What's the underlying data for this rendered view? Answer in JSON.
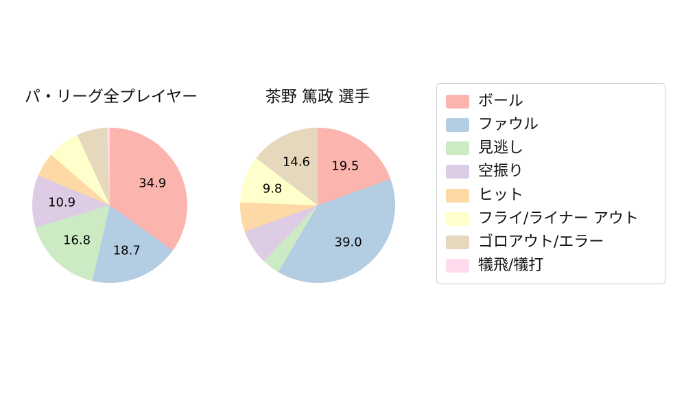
{
  "charts": {
    "left_title": "パ・リーグ全プレイヤー",
    "right_title": "茶野 篤政 選手"
  },
  "legend": {
    "items": [
      {
        "label": "ボール",
        "color": "#fbb4ae"
      },
      {
        "label": "ファウル",
        "color": "#b3cde3"
      },
      {
        "label": "見逃し",
        "color": "#ccebc5"
      },
      {
        "label": "空振り",
        "color": "#decbe4"
      },
      {
        "label": "ヒット",
        "color": "#fed9a6"
      },
      {
        "label": "フライ/ライナー アウト",
        "color": "#ffffcc"
      },
      {
        "label": "ゴロアウト/エラー",
        "color": "#e5d8bd"
      },
      {
        "label": "犠飛/犠打",
        "color": "#fddaec"
      }
    ]
  },
  "chart_data": [
    {
      "type": "pie",
      "title": "パ・リーグ全プレイヤー",
      "labels": [
        "ボール",
        "ファウル",
        "見逃し",
        "空振り",
        "ヒット",
        "フライ/ライナー アウト",
        "ゴロアウト/エラー",
        "犠飛/犠打"
      ],
      "values": [
        34.9,
        18.7,
        16.8,
        10.9,
        5.0,
        6.8,
        6.3,
        0.6
      ],
      "value_labels": [
        "34.9",
        "18.7",
        "16.8",
        "10.9",
        "",
        "",
        "",
        ""
      ],
      "colors": [
        "#fbb4ae",
        "#b3cde3",
        "#ccebc5",
        "#decbe4",
        "#fed9a6",
        "#ffffcc",
        "#e5d8bd",
        "#fddaec"
      ],
      "start_angle_deg": 90,
      "direction": "clockwise",
      "legend_position": "right"
    },
    {
      "type": "pie",
      "title": "茶野 篤政 選手",
      "labels": [
        "ボール",
        "ファウル",
        "見逃し",
        "空振り",
        "ヒット",
        "フライ/ライナー アウト",
        "ゴロアウト/エラー",
        "犠飛/犠打"
      ],
      "values": [
        19.5,
        39.0,
        3.7,
        7.3,
        6.1,
        9.8,
        14.6,
        0.0
      ],
      "value_labels": [
        "19.5",
        "39.0",
        "",
        "",
        "",
        "9.8",
        "14.6",
        ""
      ],
      "colors": [
        "#fbb4ae",
        "#b3cde3",
        "#ccebc5",
        "#decbe4",
        "#fed9a6",
        "#ffffcc",
        "#e5d8bd",
        "#fddaec"
      ],
      "start_angle_deg": 90,
      "direction": "clockwise",
      "legend_position": "right"
    }
  ]
}
